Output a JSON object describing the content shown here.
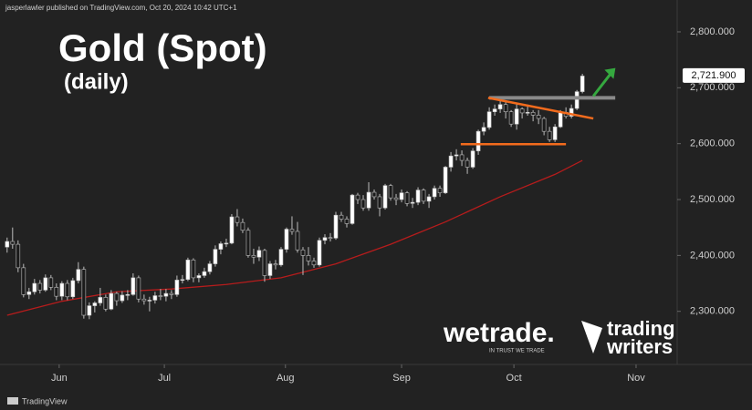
{
  "header": {
    "publisher": "jasperlawler published on TradingView.com, Oct 20, 2024 10:42 UTC+1"
  },
  "chart_data": {
    "type": "candlestick",
    "title": "Gold (Spot)",
    "subtitle": "(daily)",
    "x": [
      0,
      1,
      2,
      3,
      4,
      5,
      6,
      7,
      8,
      9,
      10,
      11,
      12,
      13,
      14,
      15,
      16,
      17,
      18,
      19,
      20,
      21,
      22,
      23,
      24,
      25,
      26,
      27,
      28,
      29,
      30,
      31,
      32,
      33,
      34,
      35,
      36,
      37,
      38,
      39,
      40,
      41,
      42,
      43,
      44,
      45,
      46,
      47,
      48,
      49,
      50,
      51,
      52,
      53,
      54,
      55,
      56,
      57,
      58,
      59,
      60,
      61,
      62,
      63,
      64,
      65,
      66,
      67,
      68,
      69,
      70,
      71,
      72,
      73,
      74,
      75,
      76,
      77,
      78,
      79,
      80,
      81,
      82,
      83,
      84,
      85,
      86,
      87,
      88,
      89,
      90,
      91,
      92,
      93,
      94,
      95,
      96,
      97,
      98,
      99,
      100,
      101,
      102,
      103,
      104,
      105
    ],
    "open": [
      2415,
      2425,
      2420,
      2378,
      2330,
      2335,
      2350,
      2338,
      2360,
      2343,
      2327,
      2350,
      2326,
      2355,
      2375,
      2293,
      2310,
      2315,
      2325,
      2304,
      2332,
      2319,
      2329,
      2330,
      2360,
      2322,
      2319,
      2320,
      2328,
      2327,
      2332,
      2330,
      2356,
      2357,
      2392,
      2360,
      2364,
      2371,
      2385,
      2411,
      2421,
      2422,
      2469,
      2459,
      2445,
      2400,
      2397,
      2409,
      2364,
      2385,
      2383,
      2411,
      2447,
      2443,
      2410,
      2400,
      2390,
      2383,
      2427,
      2432,
      2431,
      2472,
      2465,
      2457,
      2508,
      2500,
      2485,
      2513,
      2505,
      2485,
      2525,
      2503,
      2500,
      2512,
      2493,
      2495,
      2517,
      2497,
      2505,
      2520,
      2512,
      2558,
      2578,
      2580,
      2570,
      2558,
      2587,
      2622,
      2629,
      2657,
      2662,
      2670,
      2657,
      2635,
      2662,
      2655,
      2656,
      2651,
      2645,
      2622,
      2607,
      2630,
      2656,
      2649,
      2663,
      2693
    ],
    "high": [
      2432,
      2450,
      2427,
      2385,
      2342,
      2358,
      2356,
      2366,
      2365,
      2350,
      2354,
      2356,
      2360,
      2388,
      2380,
      2316,
      2318,
      2342,
      2330,
      2338,
      2335,
      2336,
      2338,
      2368,
      2364,
      2330,
      2326,
      2335,
      2340,
      2340,
      2338,
      2364,
      2365,
      2396,
      2395,
      2368,
      2378,
      2390,
      2418,
      2425,
      2430,
      2474,
      2483,
      2466,
      2450,
      2412,
      2416,
      2412,
      2390,
      2392,
      2415,
      2450,
      2470,
      2460,
      2415,
      2415,
      2396,
      2432,
      2438,
      2440,
      2478,
      2478,
      2470,
      2510,
      2512,
      2508,
      2531,
      2518,
      2510,
      2528,
      2528,
      2510,
      2518,
      2515,
      2503,
      2522,
      2520,
      2510,
      2525,
      2525,
      2560,
      2585,
      2590,
      2588,
      2575,
      2592,
      2625,
      2638,
      2665,
      2670,
      2685,
      2675,
      2660,
      2672,
      2665,
      2670,
      2660,
      2660,
      2648,
      2630,
      2635,
      2660,
      2665,
      2670,
      2696,
      2725
    ],
    "low": [
      2405,
      2412,
      2370,
      2325,
      2322,
      2330,
      2332,
      2335,
      2338,
      2320,
      2320,
      2320,
      2322,
      2350,
      2287,
      2286,
      2298,
      2310,
      2300,
      2302,
      2310,
      2315,
      2320,
      2328,
      2316,
      2312,
      2300,
      2314,
      2320,
      2318,
      2322,
      2326,
      2350,
      2354,
      2352,
      2352,
      2360,
      2366,
      2380,
      2402,
      2415,
      2420,
      2452,
      2440,
      2396,
      2385,
      2390,
      2353,
      2358,
      2375,
      2380,
      2405,
      2437,
      2405,
      2365,
      2382,
      2378,
      2380,
      2420,
      2425,
      2428,
      2460,
      2450,
      2455,
      2492,
      2480,
      2480,
      2500,
      2470,
      2482,
      2498,
      2490,
      2495,
      2488,
      2485,
      2490,
      2492,
      2485,
      2500,
      2505,
      2510,
      2550,
      2570,
      2560,
      2546,
      2555,
      2580,
      2615,
      2625,
      2650,
      2655,
      2645,
      2630,
      2625,
      2645,
      2650,
      2640,
      2635,
      2615,
      2603,
      2603,
      2628,
      2645,
      2645,
      2660,
      2690
    ],
    "close": [
      2425,
      2420,
      2378,
      2330,
      2335,
      2350,
      2338,
      2360,
      2343,
      2327,
      2350,
      2326,
      2355,
      2375,
      2293,
      2310,
      2315,
      2325,
      2304,
      2332,
      2319,
      2329,
      2330,
      2360,
      2322,
      2319,
      2320,
      2328,
      2327,
      2332,
      2330,
      2356,
      2357,
      2392,
      2360,
      2364,
      2371,
      2385,
      2411,
      2421,
      2422,
      2469,
      2459,
      2445,
      2400,
      2397,
      2409,
      2364,
      2385,
      2383,
      2411,
      2447,
      2443,
      2410,
      2400,
      2390,
      2383,
      2427,
      2432,
      2431,
      2472,
      2465,
      2457,
      2508,
      2500,
      2485,
      2513,
      2505,
      2485,
      2525,
      2503,
      2500,
      2512,
      2493,
      2495,
      2517,
      2497,
      2505,
      2520,
      2512,
      2558,
      2578,
      2580,
      2570,
      2558,
      2587,
      2622,
      2629,
      2657,
      2662,
      2670,
      2657,
      2635,
      2662,
      2655,
      2656,
      2651,
      2645,
      2622,
      2607,
      2630,
      2656,
      2649,
      2663,
      2693,
      2721
    ],
    "up_color": "#ffffff",
    "down_color": "#1a1a1a",
    "wick_color": "#bdbdbd",
    "xlim": [
      -1.3,
      122.3
    ],
    "xticks": [
      {
        "value": 9.5,
        "label": "Jun"
      },
      {
        "value": 28.7,
        "label": "Jul"
      },
      {
        "value": 50.8,
        "label": "Aug"
      },
      {
        "value": 72,
        "label": "Sep"
      },
      {
        "value": 92.5,
        "label": "Oct"
      },
      {
        "value": 114.8,
        "label": "Nov"
      }
    ],
    "ylim": [
      2205,
      2857
    ],
    "yticks": [
      {
        "value": 2300,
        "label": "2,300.000"
      },
      {
        "value": 2400,
        "label": "2,400.000"
      },
      {
        "value": 2500,
        "label": "2,500.000"
      },
      {
        "value": 2600,
        "label": "2,600.000"
      },
      {
        "value": 2700,
        "label": "2,700.000"
      },
      {
        "value": 2800,
        "label": "2,800.000"
      }
    ],
    "last_price": {
      "value": 2721.9,
      "label": "2,721.900"
    },
    "moving_average": {
      "color": "#b71c1c",
      "x": [
        0,
        10,
        20,
        30,
        40,
        50,
        60,
        70,
        80,
        90,
        100,
        105
      ],
      "values": [
        2293,
        2318,
        2335,
        2340,
        2348,
        2360,
        2385,
        2420,
        2460,
        2505,
        2545,
        2570
      ]
    },
    "levels": [
      {
        "color": "#8a8a8a",
        "x": [
          88,
          111
        ],
        "values": [
          2682,
          2682
        ]
      },
      {
        "color": "#f26b1d",
        "x": [
          87.8,
          107
        ],
        "values": [
          2682,
          2645
        ]
      },
      {
        "color": "#f26b1d",
        "x": [
          82.8,
          102
        ],
        "values": [
          2599,
          2599
        ]
      }
    ],
    "arrow": {
      "color": "#35a83f",
      "x": [
        107,
        110.7
      ],
      "values": [
        2685,
        2732
      ]
    }
  },
  "branding": {
    "wetrade": "wetrade.",
    "wetrade_tagline": "IN TRUST WE TRADE",
    "tw_line1": "trading",
    "tw_line2": "writers",
    "footer": "TradingView"
  }
}
